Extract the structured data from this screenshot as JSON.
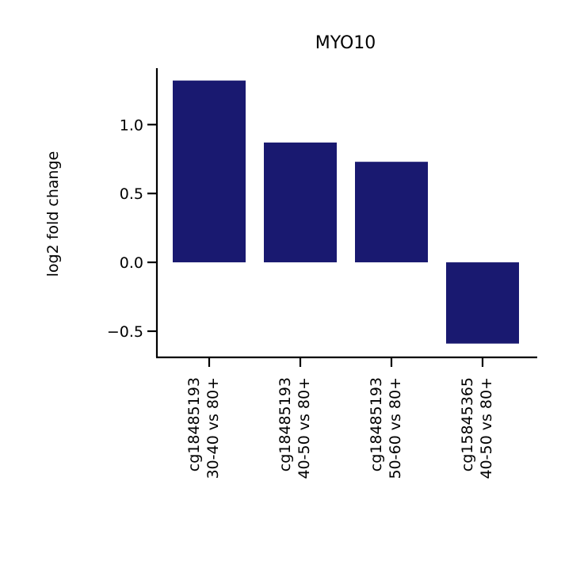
{
  "chart_data": {
    "type": "bar",
    "title": "MYO10",
    "xlabel": "",
    "ylabel": "log2 fold change",
    "categories": [
      [
        "cg18485193",
        "30-40 vs 80+"
      ],
      [
        "cg18485193",
        "40-50 vs 80+"
      ],
      [
        "cg18485193",
        "50-60 vs 80+"
      ],
      [
        "cg15845365",
        "40-50 vs 80+"
      ]
    ],
    "values": [
      1.32,
      0.87,
      0.73,
      -0.59
    ],
    "ylim": [
      -0.69,
      1.41
    ],
    "yticks": [
      -0.5,
      0.0,
      0.5,
      1.0
    ],
    "ytick_labels": [
      "−0.5",
      "0.0",
      "0.5",
      "1.0"
    ],
    "bar_color": "#191970",
    "grid": false,
    "legend": "none"
  }
}
